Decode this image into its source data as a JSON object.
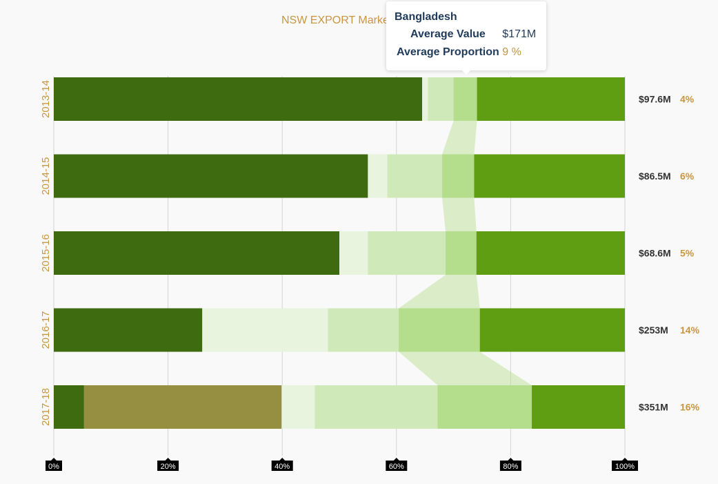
{
  "title": "NSW EXPORT Marke",
  "tooltip": {
    "title": "Bangladesh",
    "rows": [
      {
        "label": "Average Value",
        "value": "$171M"
      },
      {
        "label": "Average Proportion",
        "value": "9 %"
      }
    ]
  },
  "colors": {
    "dark_green": "#3e6a10",
    "olive": "#968f42",
    "pale_green": "#e8f4dd",
    "light_green": "#cfeab8",
    "mid_light_green": "#b4de8c",
    "bright_green": "#5f9e12",
    "year_label": "#c9963f",
    "value_label": "#333333",
    "percent_label": "#c9963f",
    "flow_band": "#b4de8c"
  },
  "chart_data": {
    "type": "bar",
    "orientation": "horizontal",
    "stacked": "100%",
    "categories": [
      "2013-14",
      "2014-15",
      "2015-16",
      "2016-17",
      "2017-18"
    ],
    "segments": [
      {
        "color": "dark_green",
        "values": [
          64.5,
          55,
          50,
          26,
          5.3
        ]
      },
      {
        "color": "olive",
        "values": [
          0,
          0,
          0,
          0,
          34.6
        ]
      },
      {
        "color": "pale_green",
        "values": [
          1,
          3.4,
          5,
          22,
          5.8
        ]
      },
      {
        "color": "light_green",
        "values": [
          4.5,
          9.6,
          13.6,
          12.4,
          21.5
        ]
      },
      {
        "color": "mid_light_green",
        "values": [
          4.1,
          5.6,
          5.4,
          14.2,
          16.5
        ]
      },
      {
        "color": "bright_green",
        "values": [
          25.9,
          26.4,
          26,
          25.4,
          16.3
        ]
      }
    ],
    "highlighted_segment_index": 4,
    "highlighted_series": "Bangladesh",
    "row_values": [
      "$97.6M",
      "$86.5M",
      "$68.6M",
      "$253M",
      "$351M"
    ],
    "row_percents": [
      "4%",
      "6%",
      "5%",
      "14%",
      "16%"
    ],
    "x_ticks": [
      "0%",
      "20%",
      "40%",
      "60%",
      "80%",
      "100%"
    ],
    "x_tick_values": [
      0,
      20,
      40,
      60,
      80,
      100
    ],
    "xlim": [
      0,
      100
    ],
    "grid": true
  }
}
